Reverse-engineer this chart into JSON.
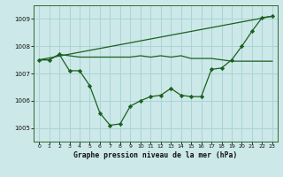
{
  "title": "Graphe pression niveau de la mer (hPa)",
  "bg": "#cce8e8",
  "grid_color": "#aad4d4",
  "lc": "#1a6020",
  "xlim": [
    -0.5,
    23.5
  ],
  "ylim": [
    1004.5,
    1009.5
  ],
  "yticks": [
    1005,
    1006,
    1007,
    1008,
    1009
  ],
  "xticks": [
    0,
    1,
    2,
    3,
    4,
    5,
    6,
    7,
    8,
    9,
    10,
    11,
    12,
    13,
    14,
    15,
    16,
    17,
    18,
    19,
    20,
    21,
    22,
    23
  ],
  "line1_x": [
    0,
    1,
    2,
    3,
    4,
    5,
    6,
    7,
    8,
    9,
    10,
    11,
    12,
    13,
    14,
    15,
    16,
    17,
    18,
    19,
    20,
    21,
    22,
    23
  ],
  "line1_y": [
    1007.5,
    1007.5,
    1007.7,
    1007.1,
    1007.1,
    1006.55,
    1005.55,
    1005.1,
    1005.15,
    1005.8,
    1006.0,
    1006.15,
    1006.2,
    1006.45,
    1006.2,
    1006.15,
    1006.15,
    1007.15,
    1007.2,
    1007.5,
    1008.0,
    1008.55,
    1009.05,
    1009.1
  ],
  "line2_x": [
    0,
    1,
    2,
    3,
    4,
    5,
    6,
    7,
    8,
    9,
    10,
    11,
    12,
    13,
    14,
    15,
    16,
    17,
    18,
    19,
    20,
    21,
    22,
    23
  ],
  "line2_y": [
    1007.5,
    1007.5,
    1007.7,
    1007.65,
    1007.6,
    1007.6,
    1007.6,
    1007.6,
    1007.6,
    1007.6,
    1007.65,
    1007.6,
    1007.65,
    1007.6,
    1007.65,
    1007.55,
    1007.55,
    1007.55,
    1007.5,
    1007.45,
    1007.45,
    1007.45,
    1007.45,
    1007.45
  ],
  "line3_x": [
    0,
    23
  ],
  "line3_y": [
    1007.5,
    1009.1
  ]
}
